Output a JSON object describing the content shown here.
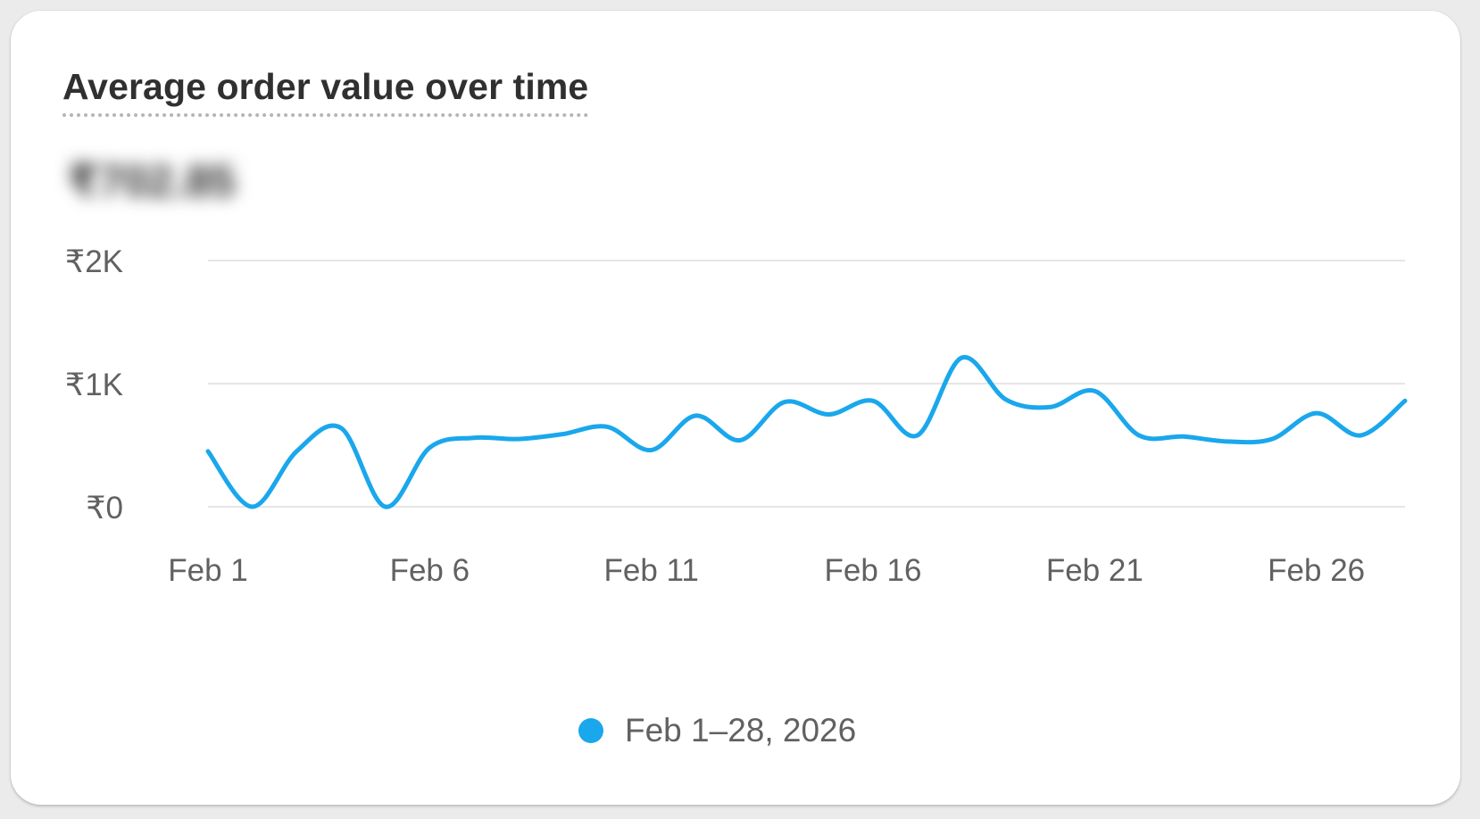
{
  "card": {
    "title": "Average order value over time",
    "metric_value": "₹702.85"
  },
  "legend": {
    "label": "Feb 1–28, 2026"
  },
  "colors": {
    "series": "#1aa7ec",
    "grid": "#e6e6e6",
    "axis_text": "#616161",
    "title_text": "#303030"
  },
  "chart_data": {
    "type": "line",
    "title": "Average order value over time",
    "xlabel": "",
    "ylabel": "",
    "ylim": [
      0,
      2000
    ],
    "y_ticks": [
      {
        "value": 0,
        "label": "₹0"
      },
      {
        "value": 1000,
        "label": "₹1K"
      },
      {
        "value": 2000,
        "label": "₹2K"
      }
    ],
    "x_ticks": [
      {
        "day": 1,
        "label": "Feb 1"
      },
      {
        "day": 6,
        "label": "Feb 6"
      },
      {
        "day": 11,
        "label": "Feb 11"
      },
      {
        "day": 16,
        "label": "Feb 16"
      },
      {
        "day": 21,
        "label": "Feb 21"
      },
      {
        "day": 26,
        "label": "Feb 26"
      }
    ],
    "grid": true,
    "legend_position": "bottom-center",
    "series": [
      {
        "name": "Feb 1–28, 2026",
        "x": [
          "Feb 1",
          "Feb 2",
          "Feb 3",
          "Feb 4",
          "Feb 5",
          "Feb 6",
          "Feb 7",
          "Feb 8",
          "Feb 9",
          "Feb 10",
          "Feb 11",
          "Feb 12",
          "Feb 13",
          "Feb 14",
          "Feb 15",
          "Feb 16",
          "Feb 17",
          "Feb 18",
          "Feb 19",
          "Feb 20",
          "Feb 21",
          "Feb 22",
          "Feb 23",
          "Feb 24",
          "Feb 25",
          "Feb 26",
          "Feb 27",
          "Feb 28"
        ],
        "values": [
          450,
          0,
          450,
          640,
          0,
          480,
          560,
          550,
          590,
          650,
          460,
          740,
          540,
          850,
          750,
          860,
          580,
          1210,
          870,
          810,
          940,
          580,
          570,
          530,
          550,
          760,
          580,
          860
        ]
      }
    ]
  }
}
